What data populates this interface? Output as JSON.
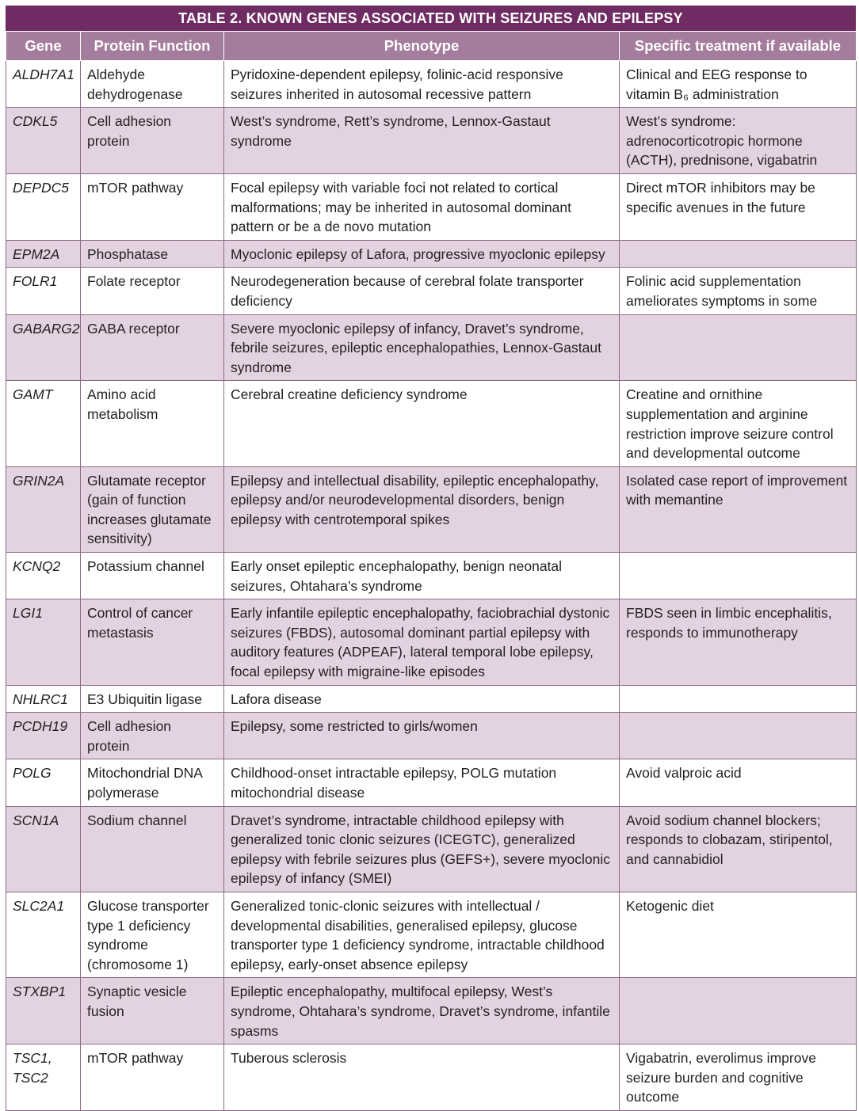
{
  "header": {
    "title": "TABLE 2. KNOWN GENES ASSOCIATED WITH SEIZURES AND EPILEPSY"
  },
  "table": {
    "columns": [
      "Gene",
      "Protein Function",
      "Phenotype",
      "Specific treatment if available"
    ],
    "rows": [
      [
        "ALDH7A1",
        "Aldehyde dehydrogenase",
        "Pyridoxine-dependent epilepsy, folinic-acid responsive seizures inherited in autosomal recessive pattern",
        "Clinical and EEG response to vitamin B₆ administration"
      ],
      [
        "CDKL5",
        "Cell adhesion protein",
        "West’s syndrome, Rett’s syndrome, Lennox-Gastaut syndrome",
        "West’s syndrome: adrenocorticotropic hormone (ACTH), prednisone, vigabatrin"
      ],
      [
        "DEPDC5",
        "mTOR pathway",
        "Focal epilepsy with variable foci not related to cortical malformations; may be inherited in autosomal dominant pattern or be a de novo mutation",
        "Direct mTOR inhibitors may be specific avenues in the future"
      ],
      [
        "EPM2A",
        "Phosphatase",
        "Myoclonic epilepsy of Lafora, progressive myoclonic epilepsy",
        null
      ],
      [
        "FOLR1",
        "Folate receptor",
        "Neurodegeneration because of cerebral folate transporter deficiency",
        "Folinic acid supplementation ameliorates symptoms in some"
      ],
      [
        "GABARG2",
        "GABA receptor",
        "Severe myoclonic epilepsy of infancy, Dravet’s syndrome, febrile seizures, epileptic encephalopathies, Lennox-Gastaut syndrome",
        null
      ],
      [
        "GAMT",
        "Amino acid metabolism",
        "Cerebral creatine deficiency syndrome",
        "Creatine and ornithine supplementation and arginine restriction improve seizure control and developmental outcome"
      ],
      [
        "GRIN2A",
        "Glutamate receptor (gain of function increases glutamate sensitivity)",
        "Epilepsy and intellectual disability, epileptic encephalopathy, epilepsy and/or neurodevelopmental disorders, benign epilepsy with centrotemporal spikes",
        "Isolated case report of improvement with memantine"
      ],
      [
        "KCNQ2",
        "Potassium channel",
        "Early onset epileptic encephalopathy, benign neonatal seizures, Ohtahara’s syndrome",
        null
      ],
      [
        "LGI1",
        "Control of cancer metastasis",
        "Early infantile epileptic encephalopathy, faciobrachial dystonic seizures (FBDS), autosomal dominant partial epilepsy with auditory features (ADPEAF), lateral temporal lobe epilepsy, focal epilepsy with migraine-like episodes",
        "FBDS seen in limbic encephalitis, responds to immunotherapy"
      ],
      [
        "NHLRC1",
        "E3 Ubiquitin ligase",
        "Lafora disease",
        null
      ],
      [
        "PCDH19",
        "Cell adhesion protein",
        "Epilepsy, some restricted to girls/women",
        null
      ],
      [
        "POLG",
        "Mitochondrial DNA polymerase",
        "Childhood-onset intractable epilepsy, POLG mutation mitochondrial disease",
        "Avoid valproic acid"
      ],
      [
        "SCN1A",
        "Sodium channel",
        "Dravet’s syndrome, intractable childhood epilepsy with generalized tonic clonic seizures (ICEGTC), generalized epilepsy with febrile seizures plus (GEFS+), severe myoclonic epilepsy of infancy (SMEI)",
        "Avoid sodium channel blockers; responds to clobazam, stiripentol, and cannabidiol"
      ],
      [
        "SLC2A1",
        "Glucose transporter type 1 deficiency syndrome (chromosome 1)",
        "Generalized tonic-clonic seizures with intellectual / developmental disabilities, generalised epilepsy, glucose transporter type 1 deficiency syndrome, intractable childhood epilepsy, early-onset absence epilepsy",
        "Ketogenic diet"
      ],
      [
        "STXBP1",
        "Synaptic vesicle fusion",
        "Epileptic encephalopathy, multifocal epilepsy, West’s syndrome, Ohtahara’s syndrome, Dravet’s syndrome, infantile spasms",
        null
      ],
      [
        "TSC1, TSC2",
        "mTOR pathway",
        "Tuberous sclerosis",
        "Vigabatrin, everolimus improve seizure burden and cognitive outcome"
      ]
    ]
  }
}
